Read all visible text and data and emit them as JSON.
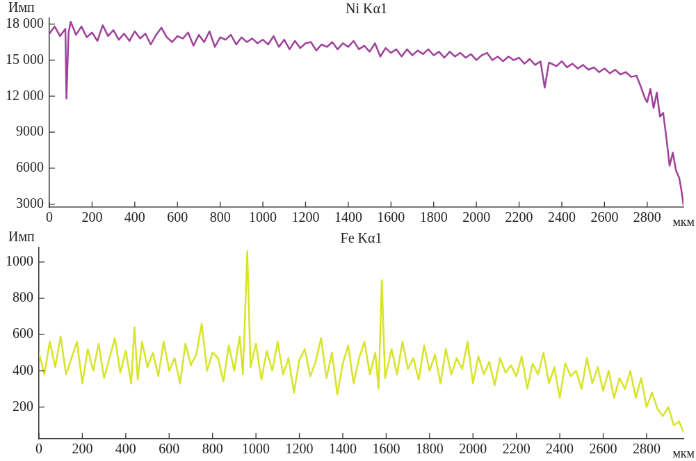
{
  "chart_data": [
    {
      "type": "line",
      "title": "Ni Kα1",
      "xlabel": "мкм",
      "ylabel": "Имп",
      "xlim": [
        0,
        2970
      ],
      "xticks": [
        0,
        200,
        400,
        600,
        800,
        1000,
        1200,
        1400,
        1600,
        1800,
        2000,
        2200,
        2400,
        2600,
        2800
      ],
      "ylim": [
        2750,
        18500
      ],
      "yticks": [
        3000,
        6000,
        9000,
        12000,
        15000,
        18000
      ],
      "grid": false,
      "legend": false,
      "marker": "none",
      "line_style": "solid",
      "series": [
        {
          "color": "#a0409a",
          "x": [
            0,
            25,
            50,
            75,
            80,
            90,
            100,
            125,
            150,
            175,
            200,
            225,
            250,
            275,
            300,
            325,
            350,
            375,
            400,
            425,
            450,
            475,
            500,
            525,
            550,
            575,
            600,
            625,
            650,
            675,
            700,
            725,
            750,
            775,
            800,
            825,
            850,
            875,
            900,
            925,
            950,
            975,
            1000,
            1025,
            1050,
            1075,
            1100,
            1125,
            1150,
            1175,
            1200,
            1225,
            1250,
            1275,
            1300,
            1325,
            1350,
            1375,
            1400,
            1425,
            1450,
            1475,
            1500,
            1525,
            1550,
            1575,
            1600,
            1625,
            1650,
            1675,
            1700,
            1725,
            1750,
            1775,
            1800,
            1825,
            1850,
            1875,
            1900,
            1925,
            1950,
            1975,
            2000,
            2025,
            2050,
            2075,
            2100,
            2125,
            2150,
            2175,
            2200,
            2225,
            2250,
            2275,
            2300,
            2320,
            2340,
            2375,
            2400,
            2425,
            2450,
            2475,
            2500,
            2525,
            2550,
            2575,
            2600,
            2625,
            2650,
            2675,
            2700,
            2725,
            2750,
            2770,
            2790,
            2800,
            2815,
            2830,
            2845,
            2860,
            2875,
            2890,
            2905,
            2920,
            2935,
            2950,
            2960,
            2970
          ],
          "values": [
            17200,
            17800,
            17000,
            17600,
            11800,
            17300,
            18200,
            17100,
            17800,
            16900,
            17300,
            16600,
            17900,
            17000,
            17500,
            16700,
            17200,
            16600,
            17400,
            16800,
            17200,
            16300,
            17100,
            17700,
            16900,
            16500,
            17000,
            16800,
            17300,
            16200,
            17100,
            16500,
            17400,
            16100,
            16900,
            16700,
            17100,
            16300,
            16900,
            16500,
            16800,
            16400,
            16700,
            16300,
            17000,
            16100,
            16700,
            15900,
            16600,
            16000,
            16400,
            16500,
            15800,
            16300,
            16100,
            16500,
            15900,
            16400,
            16100,
            16600,
            15900,
            16200,
            15700,
            16400,
            15300,
            16000,
            15600,
            15900,
            15300,
            15900,
            15400,
            15800,
            15500,
            15900,
            15400,
            15700,
            15200,
            15700,
            15300,
            15600,
            15200,
            15500,
            15000,
            15400,
            15600,
            15000,
            15300,
            14900,
            15300,
            15000,
            15200,
            14700,
            15100,
            14600,
            14900,
            12700,
            14800,
            14500,
            14900,
            14400,
            14700,
            14300,
            14600,
            14200,
            14400,
            14000,
            14300,
            13900,
            14200,
            13800,
            14000,
            13600,
            13700,
            12800,
            11800,
            11500,
            12600,
            11000,
            12300,
            10300,
            10600,
            8500,
            6200,
            7300,
            5800,
            5200,
            4200,
            2900
          ]
        }
      ]
    },
    {
      "type": "line",
      "title": "Fe Kα1",
      "xlabel": "мкм",
      "ylabel": "Имп",
      "xlim": [
        0,
        2970
      ],
      "xticks": [
        0,
        200,
        400,
        600,
        800,
        1000,
        1200,
        1400,
        1600,
        1800,
        2000,
        2200,
        2400,
        2600,
        2800
      ],
      "ylim": [
        25,
        1080
      ],
      "yticks": [
        200,
        400,
        600,
        800,
        1000
      ],
      "grid": false,
      "legend": false,
      "marker": "none",
      "line_style": "solid",
      "series": [
        {
          "color": "#d8e428",
          "x": [
            0,
            25,
            50,
            75,
            100,
            125,
            150,
            175,
            200,
            225,
            250,
            275,
            300,
            325,
            350,
            375,
            400,
            425,
            440,
            455,
            475,
            500,
            525,
            550,
            575,
            600,
            625,
            650,
            675,
            700,
            725,
            750,
            775,
            800,
            825,
            850,
            875,
            900,
            925,
            940,
            960,
            975,
            1000,
            1025,
            1050,
            1075,
            1100,
            1125,
            1150,
            1175,
            1200,
            1225,
            1250,
            1275,
            1300,
            1325,
            1350,
            1375,
            1400,
            1425,
            1450,
            1475,
            1500,
            1525,
            1550,
            1565,
            1580,
            1595,
            1625,
            1650,
            1675,
            1700,
            1725,
            1750,
            1775,
            1800,
            1825,
            1850,
            1875,
            1900,
            1925,
            1950,
            1975,
            2000,
            2025,
            2050,
            2075,
            2100,
            2125,
            2150,
            2175,
            2200,
            2225,
            2250,
            2275,
            2300,
            2325,
            2350,
            2375,
            2400,
            2425,
            2450,
            2475,
            2500,
            2525,
            2550,
            2575,
            2600,
            2625,
            2650,
            2675,
            2700,
            2725,
            2750,
            2775,
            2800,
            2825,
            2850,
            2875,
            2900,
            2925,
            2950,
            2970
          ],
          "values": [
            500,
            380,
            560,
            420,
            590,
            380,
            470,
            560,
            330,
            520,
            400,
            550,
            360,
            470,
            580,
            390,
            510,
            330,
            640,
            350,
            560,
            420,
            500,
            370,
            560,
            400,
            470,
            330,
            550,
            430,
            490,
            660,
            400,
            500,
            470,
            340,
            540,
            400,
            590,
            380,
            1060,
            420,
            550,
            350,
            510,
            400,
            560,
            380,
            470,
            280,
            460,
            520,
            370,
            450,
            580,
            360,
            500,
            270,
            440,
            540,
            330,
            470,
            560,
            380,
            500,
            300,
            900,
            360,
            520,
            380,
            560,
            410,
            470,
            350,
            540,
            400,
            490,
            330,
            520,
            380,
            470,
            410,
            560,
            330,
            480,
            380,
            450,
            320,
            470,
            390,
            430,
            370,
            480,
            300,
            440,
            380,
            500,
            330,
            420,
            250,
            440,
            370,
            400,
            300,
            470,
            330,
            420,
            290,
            400,
            250,
            360,
            300,
            400,
            250,
            360,
            200,
            280,
            190,
            150,
            200,
            100,
            120,
            60
          ]
        }
      ]
    }
  ]
}
